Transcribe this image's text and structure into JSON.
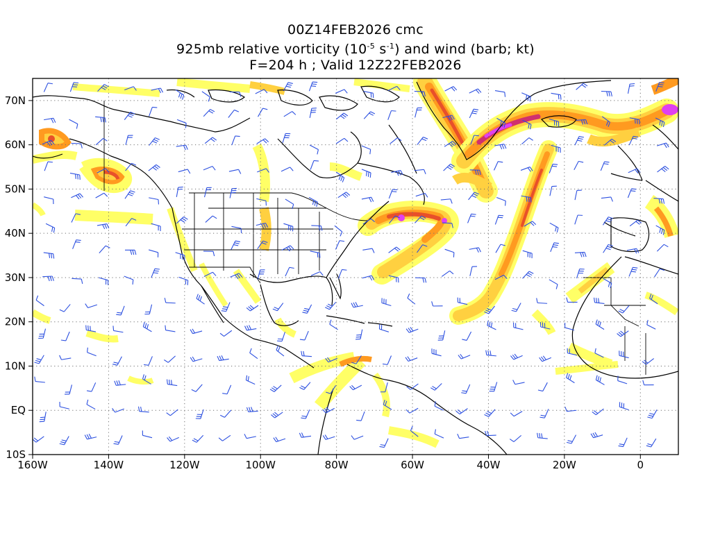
{
  "header": {
    "line1": "00Z14FEB2026 cmc",
    "line2_prefix": "925mb relative vorticity (10",
    "line2_exp1": "-5",
    "line2_mid": " s",
    "line2_exp2": "-1",
    "line2_suffix": ") and wind (barb; kt)",
    "line3": "F=204 h ; Valid 12Z22FEB2026"
  },
  "map": {
    "lon_range": [
      -160,
      10
    ],
    "lat_range": [
      -10,
      75
    ],
    "lon_ticks": [
      {
        "value": -160,
        "label": "160W"
      },
      {
        "value": -140,
        "label": "140W"
      },
      {
        "value": -120,
        "label": "120W"
      },
      {
        "value": -100,
        "label": "100W"
      },
      {
        "value": -80,
        "label": "80W"
      },
      {
        "value": -60,
        "label": "60W"
      },
      {
        "value": -40,
        "label": "40W"
      },
      {
        "value": -20,
        "label": "20W"
      },
      {
        "value": 0,
        "label": "0"
      }
    ],
    "lat_ticks": [
      {
        "value": 70,
        "label": "70N"
      },
      {
        "value": 60,
        "label": "60N"
      },
      {
        "value": 50,
        "label": "50N"
      },
      {
        "value": 40,
        "label": "40N"
      },
      {
        "value": 30,
        "label": "30N"
      },
      {
        "value": 20,
        "label": "20N"
      },
      {
        "value": 10,
        "label": "10N"
      },
      {
        "value": 0,
        "label": "EQ"
      },
      {
        "value": -10,
        "label": "10S"
      }
    ],
    "grid": "dotted",
    "colors": {
      "coast": "#000000",
      "barb": "#2b4fe0",
      "shade_levels": [
        "#ffff66",
        "#ffd040",
        "#ff9a20",
        "#e8502a",
        "#d0306e",
        "#e040f0"
      ]
    }
  }
}
